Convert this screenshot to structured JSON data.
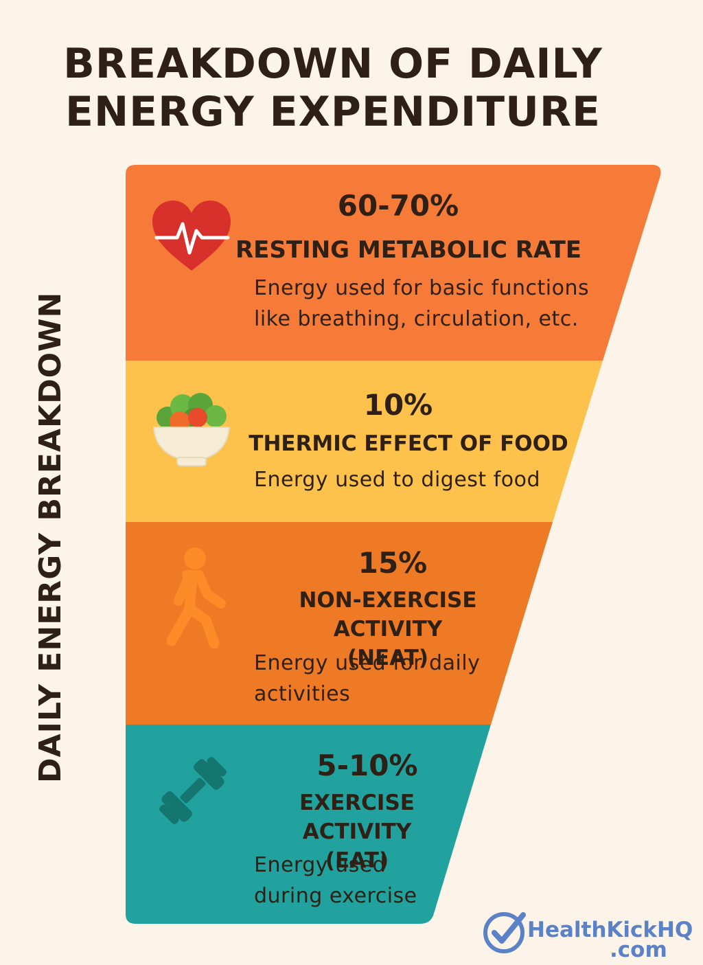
{
  "title_line1": "BREAKDOWN OF DAILY",
  "title_line2": "ENERGY EXPENDITURE",
  "side_label": "DAILY ENERGY BREAKDOWN",
  "colors": {
    "background": "#fcf4e8",
    "rmr": "#f77b38",
    "tef": "#fdc24b",
    "neat": "#ef7a26",
    "eat": "#21a29e"
  },
  "sections": [
    {
      "percent": "60-70%",
      "name": "RESTING METABOLIC RATE",
      "desc_line1": "Energy used for basic functions",
      "desc_line2": "like breathing, circulation, etc.",
      "icon": "heart-pulse-icon"
    },
    {
      "percent": "10%",
      "name": "THERMIC EFFECT OF FOOD",
      "desc_line1": "Energy used to digest food",
      "icon": "salad-bowl-icon"
    },
    {
      "percent": "15%",
      "name_line1": "NON-EXERCISE ACTIVITY",
      "name_line2": "(NEAT)",
      "desc_line1": "Energy used for daily",
      "desc_line2": "activities",
      "icon": "walking-person-icon"
    },
    {
      "percent": "5-10%",
      "name_line1": "EXERCISE ACTIVITY",
      "name_line2": "(EAT)",
      "desc_line1": "Energy used",
      "desc_line2": "during exercise",
      "icon": "dumbbell-icon"
    }
  ],
  "logo": {
    "name": "HealthKickHQ",
    "domain": ".com"
  }
}
